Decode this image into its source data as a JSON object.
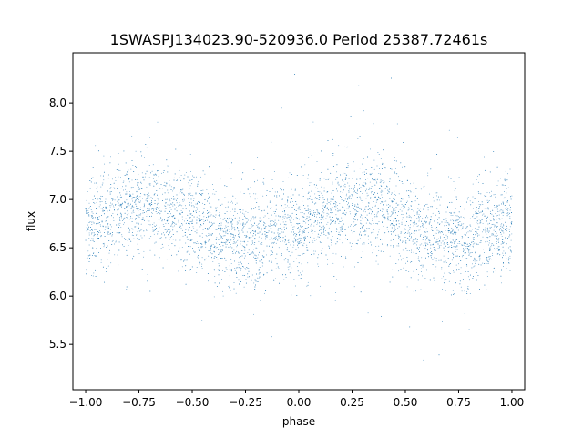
{
  "chart_data": {
    "type": "scatter",
    "title": "1SWASPJ134023.90-520936.0 Period 25387.72461s",
    "xlabel": "phase",
    "ylabel": "flux",
    "xlim": [
      -1.06,
      1.06
    ],
    "ylim": [
      5.03,
      8.52
    ],
    "xticks": [
      -1.0,
      -0.75,
      -0.5,
      -0.25,
      0.0,
      0.25,
      0.5,
      0.75,
      1.0
    ],
    "xtick_labels": [
      "−1.00",
      "−0.75",
      "−0.50",
      "−0.25",
      "0.00",
      "0.25",
      "0.50",
      "0.75",
      "1.00"
    ],
    "yticks": [
      5.5,
      6.0,
      6.5,
      7.0,
      7.5,
      8.0
    ],
    "ytick_labels": [
      "5.5",
      "6.0",
      "6.5",
      "7.0",
      "7.5",
      "8.0"
    ],
    "grid": false,
    "legend": "none",
    "marker_color": "#1f77b4",
    "series": [
      {
        "phase": [
          -1.0,
          -0.95,
          -0.9,
          -0.85,
          -0.8,
          -0.75,
          -0.7,
          -0.65,
          -0.6,
          -0.55,
          -0.5,
          -0.45,
          -0.4,
          -0.35,
          -0.3,
          -0.25,
          -0.2,
          -0.15,
          -0.1,
          -0.05,
          0.0,
          0.05,
          0.1,
          0.15,
          0.2,
          0.25,
          0.3,
          0.35,
          0.4,
          0.45,
          0.5,
          0.55,
          0.6,
          0.65,
          0.7,
          0.75,
          0.8,
          0.85,
          0.9,
          0.95,
          1.0
        ],
        "mean_flux": [
          6.72,
          6.75,
          6.8,
          6.86,
          6.9,
          6.93,
          6.94,
          6.93,
          6.9,
          6.85,
          6.78,
          6.7,
          6.64,
          6.6,
          6.58,
          6.58,
          6.6,
          6.63,
          6.66,
          6.7,
          6.72,
          6.75,
          6.8,
          6.86,
          6.9,
          6.93,
          6.94,
          6.93,
          6.9,
          6.85,
          6.78,
          6.7,
          6.64,
          6.6,
          6.58,
          6.58,
          6.6,
          6.63,
          6.66,
          6.7,
          6.72
        ],
        "scatter_sigma": 0.25,
        "flux_min": 5.2,
        "flux_max": 8.33
      }
    ]
  }
}
